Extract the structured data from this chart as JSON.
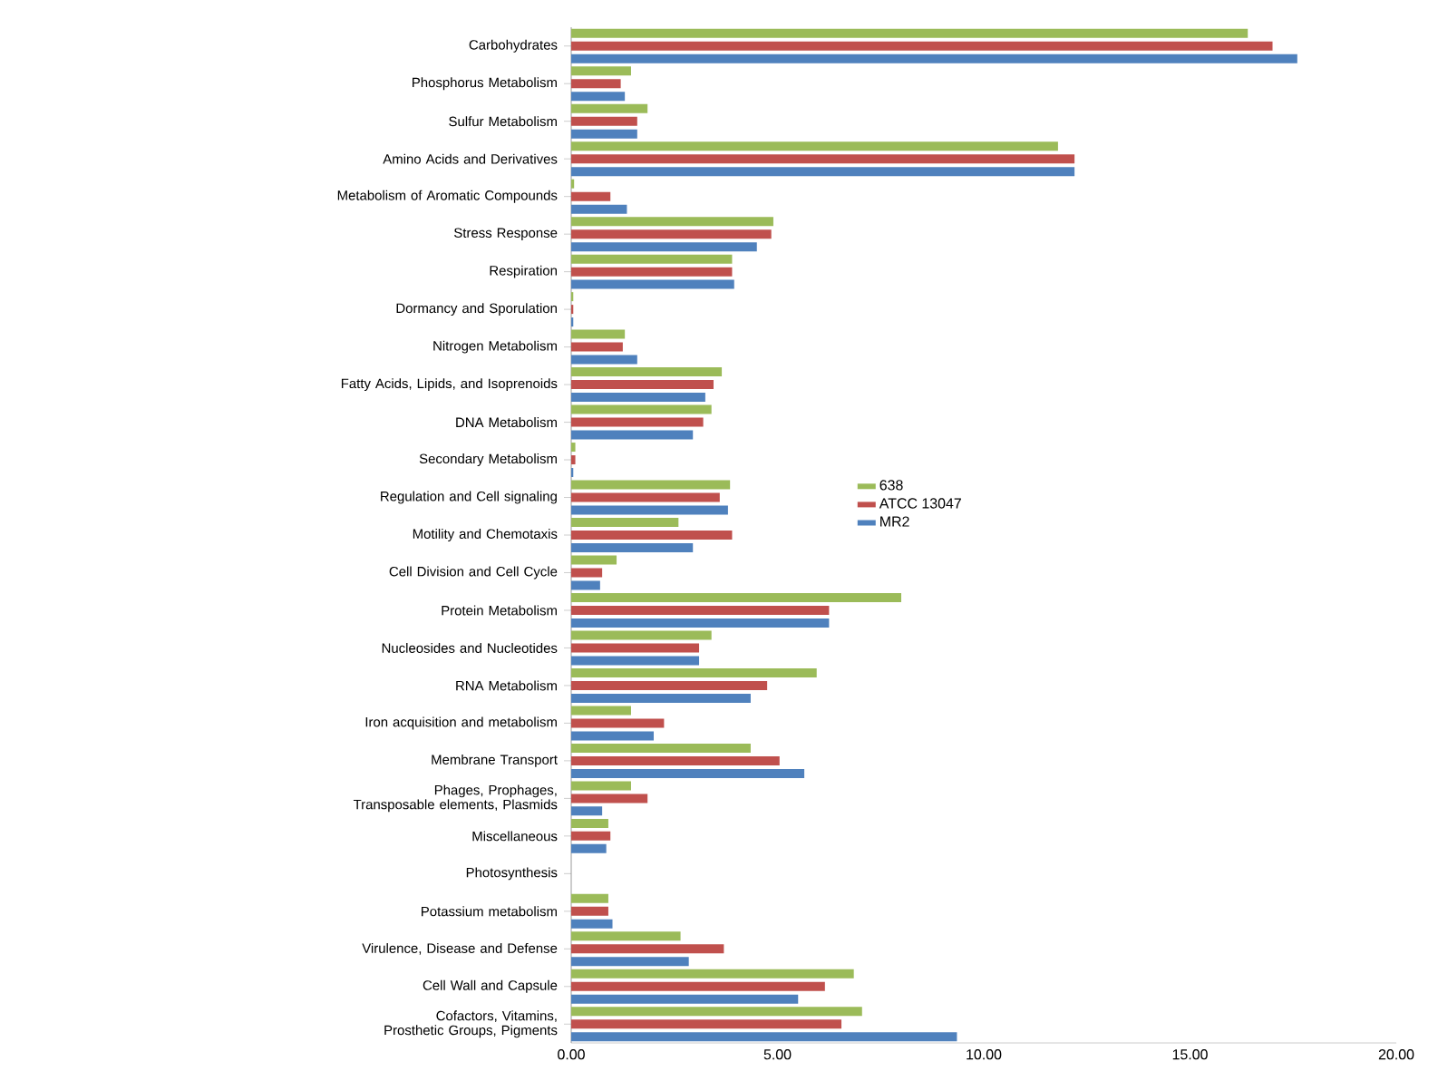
{
  "chart_data": {
    "type": "bar",
    "orientation": "horizontal",
    "categories": [
      "Carbohydrates",
      "Phosphorus Metabolism",
      "Sulfur Metabolism",
      "Amino Acids and Derivatives",
      "Metabolism of Aromatic Compounds",
      "Stress Response",
      "Respiration",
      "Dormancy and Sporulation",
      "Nitrogen Metabolism",
      "Fatty Acids, Lipids, and Isoprenoids",
      "DNA Metabolism",
      "Secondary Metabolism",
      "Regulation and Cell signaling",
      "Motility and Chemotaxis",
      "Cell Division and Cell Cycle",
      "Protein Metabolism",
      "Nucleosides and Nucleotides",
      "RNA Metabolism",
      "Iron acquisition and metabolism",
      "Membrane Transport",
      "Phages, Prophages, Transposable elements, Plasmids",
      "Miscellaneous",
      "Photosynthesis",
      "Potassium metabolism",
      "Virulence, Disease and Defense",
      "Cell Wall and Capsule",
      "Cofactors, Vitamins, Prosthetic Groups, Pigments"
    ],
    "series": [
      {
        "name": "638",
        "color": "#9bbb59",
        "values": [
          16.4,
          1.45,
          1.85,
          11.8,
          0.07,
          4.9,
          3.9,
          0.05,
          1.3,
          3.65,
          3.4,
          0.1,
          3.85,
          2.6,
          1.1,
          8.0,
          3.4,
          5.95,
          1.45,
          4.35,
          1.45,
          0.9,
          0,
          0.9,
          2.65,
          6.85,
          7.05
        ]
      },
      {
        "name": "ATCC 13047",
        "color": "#c0504d",
        "values": [
          17.0,
          1.2,
          1.6,
          12.2,
          0.95,
          4.85,
          3.9,
          0.05,
          1.25,
          3.45,
          3.2,
          0.1,
          3.6,
          3.9,
          0.75,
          6.25,
          3.1,
          4.75,
          2.25,
          5.05,
          1.85,
          0.95,
          0,
          0.9,
          3.7,
          6.15,
          6.55
        ]
      },
      {
        "name": "MR2",
        "color": "#4f81bd",
        "values": [
          17.6,
          1.3,
          1.6,
          12.2,
          1.35,
          4.5,
          3.95,
          0.05,
          1.6,
          3.25,
          2.95,
          0.05,
          3.8,
          2.95,
          0.7,
          6.25,
          3.1,
          4.35,
          2.0,
          5.65,
          0.75,
          0.85,
          0,
          1.0,
          2.85,
          5.5,
          9.35
        ]
      }
    ],
    "xlim": [
      0,
      20
    ],
    "xticks": [
      {
        "value": 0,
        "label": "0.00"
      },
      {
        "value": 5,
        "label": "5.00"
      },
      {
        "value": 10,
        "label": "10.00"
      },
      {
        "value": 15,
        "label": "15.00"
      },
      {
        "value": 20,
        "label": "20.00"
      }
    ],
    "legend": "center"
  }
}
